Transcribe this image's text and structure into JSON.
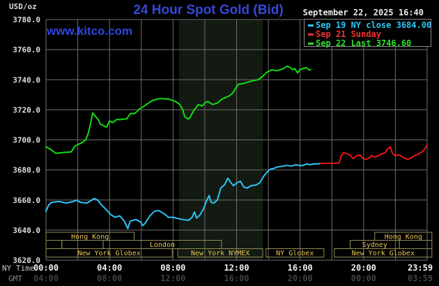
{
  "header": {
    "unit_label": "USD/oz",
    "title": "24 Hour Spot Gold (Bid)",
    "timestamp": "September 22, 2025 16:40",
    "watermark": "www.kitco.com"
  },
  "legend": {
    "items": [
      {
        "label": "Sep 19 NY close 3684.00",
        "color": "#2cc6f8"
      },
      {
        "label": "Sep 21 Sunday",
        "color": "#f83030"
      },
      {
        "label": "Sep 22 Last 3746.60",
        "color": "#2ae32a"
      }
    ]
  },
  "axes": {
    "y_ticks": [
      "3780.0",
      "3760.0",
      "3740.0",
      "3720.0",
      "3700.0",
      "3680.0",
      "3660.0",
      "3640.0",
      "3620.0"
    ],
    "x_rows": [
      {
        "header": "NY Time",
        "labels": [
          "00:00",
          "04:00",
          "08:00",
          "12:00",
          "16:00",
          "20:00",
          "23:59"
        ]
      },
      {
        "header": "GMT",
        "labels": [
          "04:00",
          "08:00",
          "12:00",
          "16:00",
          "20:00",
          "00:00",
          "03:59"
        ]
      }
    ],
    "tick_hours": [
      0,
      4,
      8,
      12,
      16,
      20,
      23.983
    ]
  },
  "sessions": {
    "rows": [
      {
        "boxes": [
          {
            "label": "Hong Kong",
            "t": [
              0,
              5.55
            ]
          },
          {
            "label": "Hong Kong",
            "t": [
              20.7,
              24.3
            ]
          }
        ]
      },
      {
        "boxes": [
          {
            "label": "",
            "t": [
              0,
              1.0
            ]
          },
          {
            "label": "",
            "t": [
              1.0,
              3.6
            ]
          },
          {
            "label": "London",
            "t": [
              3.6,
              11.05
            ]
          },
          {
            "label": "Sydney",
            "t": [
              19.15,
              22.25
            ]
          },
          {
            "label": "",
            "t": [
              22.25,
              24.3
            ]
          }
        ]
      },
      {
        "boxes": [
          {
            "label": "New York Globex",
            "t": [
              0,
              7.95
            ]
          },
          {
            "label": "New York NYMEX",
            "t": [
              8.3,
              13.65
            ]
          },
          {
            "label": "NY Globex",
            "t": [
              13.85,
              17.5
            ]
          },
          {
            "label": "New York Globex",
            "t": [
              18.15,
              24.3
            ]
          }
        ]
      }
    ]
  },
  "colors": {
    "title_blue": "#3448d8",
    "watermark_blue": "#2e46dd",
    "grid": "#6f6f6f",
    "shade": "#121a12",
    "axis_text": "#dedede",
    "x_label_ny": "#f2f2f2",
    "x_label_gmt": "#424242",
    "session_border": "#958c55",
    "session_text": "#e9c558",
    "green": "#12dd12",
    "cyan": "#2cc6f8",
    "red": "#ee1414"
  },
  "chart_data": {
    "type": "line",
    "title": "24 Hour Spot Gold (Bid)",
    "xlabel": "NY Time (hours 00:00-23:59)",
    "ylabel": "USD/oz",
    "x_range": [
      0,
      24
    ],
    "y_range": [
      3620,
      3780
    ],
    "y_tick_step": 20,
    "x_gridline_step_hours": 2,
    "legend_position": "top-right",
    "shaded_region": {
      "name": "New York NYMEX floor session",
      "t_start": 8.37,
      "t_end": 13.66
    },
    "series": [
      {
        "name": "Sep 19 NY close 3684.00",
        "color": "#2cc6f8",
        "points": [
          [
            0,
            3652.5
          ],
          [
            0.18,
            3657
          ],
          [
            0.39,
            3658.5
          ],
          [
            0.83,
            3659
          ],
          [
            1.27,
            3658
          ],
          [
            1.71,
            3659
          ],
          [
            1.93,
            3660
          ],
          [
            2.15,
            3658.5
          ],
          [
            2.59,
            3658
          ],
          [
            3.03,
            3661
          ],
          [
            3.25,
            3660
          ],
          [
            3.47,
            3657
          ],
          [
            3.76,
            3654
          ],
          [
            4.05,
            3650.5
          ],
          [
            4.34,
            3648.5
          ],
          [
            4.64,
            3649.5
          ],
          [
            4.93,
            3646
          ],
          [
            5.15,
            3641
          ],
          [
            5.3,
            3646
          ],
          [
            5.66,
            3647
          ],
          [
            5.95,
            3645.5
          ],
          [
            6.1,
            3643
          ],
          [
            6.24,
            3644.5
          ],
          [
            6.54,
            3649.5
          ],
          [
            6.83,
            3652.5
          ],
          [
            7.1,
            3653
          ],
          [
            7.49,
            3650.5
          ],
          [
            7.71,
            3648.5
          ],
          [
            7.99,
            3648.5
          ],
          [
            8.37,
            3647.5
          ],
          [
            8.65,
            3647
          ],
          [
            8.95,
            3646.5
          ],
          [
            9.17,
            3648
          ],
          [
            9.35,
            3652
          ],
          [
            9.48,
            3648
          ],
          [
            9.69,
            3650
          ],
          [
            9.91,
            3654
          ],
          [
            10.13,
            3660
          ],
          [
            10.27,
            3663
          ],
          [
            10.4,
            3658.5
          ],
          [
            10.57,
            3658
          ],
          [
            10.79,
            3660
          ],
          [
            11.01,
            3668
          ],
          [
            11.23,
            3670
          ],
          [
            11.45,
            3674.5
          ],
          [
            11.58,
            3672.5
          ],
          [
            11.8,
            3669.5
          ],
          [
            12.02,
            3671.5
          ],
          [
            12.24,
            3672.5
          ],
          [
            12.46,
            3668.5
          ],
          [
            12.68,
            3668
          ],
          [
            12.9,
            3669.5
          ],
          [
            13.21,
            3670
          ],
          [
            13.47,
            3671.5
          ],
          [
            13.69,
            3675.5
          ],
          [
            13.91,
            3678.5
          ],
          [
            14.13,
            3680.5
          ],
          [
            14.35,
            3681
          ],
          [
            14.57,
            3682
          ],
          [
            14.87,
            3682.5
          ],
          [
            15.18,
            3683
          ],
          [
            15.44,
            3682.5
          ],
          [
            15.75,
            3683.5
          ],
          [
            15.97,
            3683
          ],
          [
            16.19,
            3683
          ],
          [
            16.41,
            3684
          ],
          [
            16.63,
            3683.5
          ],
          [
            16.85,
            3684
          ],
          [
            17.07,
            3684
          ],
          [
            17.29,
            3684.3
          ]
        ]
      },
      {
        "name": "Sep 21 Sunday",
        "color": "#ee1414",
        "points": [
          [
            17.29,
            3684.3
          ],
          [
            18.45,
            3684.5
          ],
          [
            18.6,
            3689.5
          ],
          [
            18.74,
            3691.5
          ],
          [
            18.91,
            3691
          ],
          [
            19.13,
            3690
          ],
          [
            19.35,
            3687.5
          ],
          [
            19.57,
            3689.5
          ],
          [
            19.78,
            3690
          ],
          [
            19.92,
            3688
          ],
          [
            20.14,
            3687
          ],
          [
            20.36,
            3688
          ],
          [
            20.49,
            3689.5
          ],
          [
            20.71,
            3688.5
          ],
          [
            20.93,
            3689.5
          ],
          [
            21.1,
            3690.5
          ],
          [
            21.37,
            3691.5
          ],
          [
            21.5,
            3694
          ],
          [
            21.67,
            3695.3
          ],
          [
            21.81,
            3691
          ],
          [
            21.98,
            3689.5
          ],
          [
            22.24,
            3690
          ],
          [
            22.55,
            3688
          ],
          [
            22.77,
            3687
          ],
          [
            22.99,
            3688
          ],
          [
            23.21,
            3689.5
          ],
          [
            23.43,
            3690.5
          ],
          [
            23.6,
            3691.5
          ],
          [
            23.73,
            3692.5
          ],
          [
            23.85,
            3694
          ],
          [
            24,
            3696.5
          ]
        ]
      },
      {
        "name": "Sep 22 Last 3746.60",
        "color": "#12dd12",
        "points": [
          [
            0,
            3695.5
          ],
          [
            0.31,
            3693.5
          ],
          [
            0.61,
            3691
          ],
          [
            1.05,
            3691.5
          ],
          [
            1.58,
            3692
          ],
          [
            1.84,
            3696
          ],
          [
            2.24,
            3698
          ],
          [
            2.5,
            3700
          ],
          [
            2.68,
            3705
          ],
          [
            2.81,
            3711
          ],
          [
            2.94,
            3718
          ],
          [
            3.12,
            3715.5
          ],
          [
            3.29,
            3713.5
          ],
          [
            3.42,
            3710.5
          ],
          [
            3.69,
            3709
          ],
          [
            3.82,
            3708.5
          ],
          [
            3.99,
            3712.5
          ],
          [
            4.21,
            3711.5
          ],
          [
            4.43,
            3713.5
          ],
          [
            4.7,
            3713.5
          ],
          [
            5.09,
            3714
          ],
          [
            5.31,
            3717.5
          ],
          [
            5.57,
            3717.5
          ],
          [
            5.75,
            3719
          ],
          [
            5.88,
            3720.5
          ],
          [
            6.19,
            3722.5
          ],
          [
            6.45,
            3724.5
          ],
          [
            6.76,
            3726.5
          ],
          [
            7.2,
            3727.5
          ],
          [
            7.77,
            3727
          ],
          [
            8.16,
            3725.5
          ],
          [
            8.38,
            3724
          ],
          [
            8.51,
            3722
          ],
          [
            8.6,
            3720.5
          ],
          [
            8.73,
            3715.5
          ],
          [
            8.95,
            3713.8
          ],
          [
            9.08,
            3715
          ],
          [
            9.3,
            3719.5
          ],
          [
            9.48,
            3722
          ],
          [
            9.61,
            3723.5
          ],
          [
            9.83,
            3722.5
          ],
          [
            10.05,
            3725
          ],
          [
            10.18,
            3725.5
          ],
          [
            10.49,
            3723.5
          ],
          [
            10.8,
            3724.5
          ],
          [
            11.06,
            3727
          ],
          [
            11.28,
            3728
          ],
          [
            11.5,
            3729
          ],
          [
            11.75,
            3731
          ],
          [
            11.95,
            3734.5
          ],
          [
            12.11,
            3737
          ],
          [
            12.46,
            3737.5
          ],
          [
            12.9,
            3739
          ],
          [
            13.15,
            3739.5
          ],
          [
            13.34,
            3740
          ],
          [
            13.56,
            3741.5
          ],
          [
            13.91,
            3745
          ],
          [
            14.22,
            3746.5
          ],
          [
            14.52,
            3746
          ],
          [
            14.74,
            3746.5
          ],
          [
            14.96,
            3747.5
          ],
          [
            15.18,
            3749
          ],
          [
            15.4,
            3748
          ],
          [
            15.53,
            3746.5
          ],
          [
            15.66,
            3747.5
          ],
          [
            15.84,
            3744.5
          ],
          [
            15.97,
            3746.5
          ],
          [
            16.19,
            3747.5
          ],
          [
            16.41,
            3748
          ],
          [
            16.55,
            3746.5
          ],
          [
            16.67,
            3746.6
          ]
        ]
      }
    ]
  }
}
